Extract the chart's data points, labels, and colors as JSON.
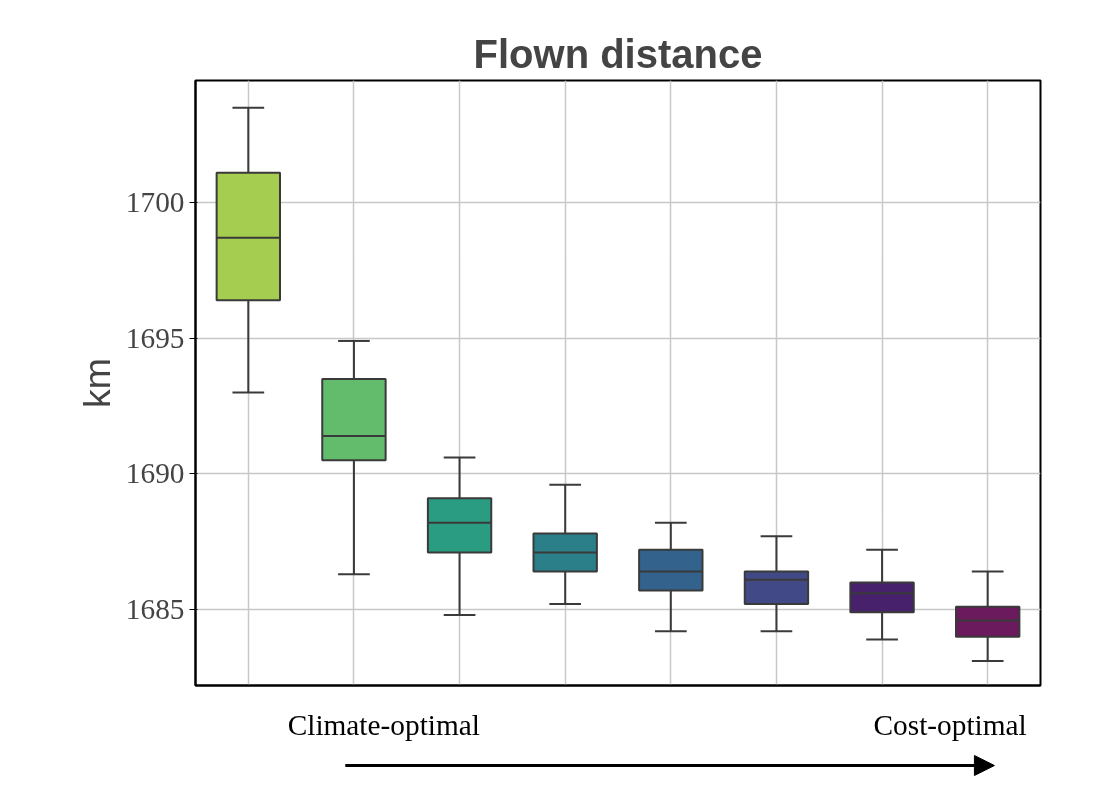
{
  "chart_data": {
    "type": "box",
    "title": "Flown distance",
    "ylabel": "km",
    "categories": [
      null,
      null,
      null,
      null,
      null,
      null,
      null,
      null
    ],
    "boxes": [
      {
        "low": 1693.0,
        "q1": 1696.4,
        "median": 1698.7,
        "q3": 1701.1,
        "high": 1703.5
      },
      {
        "low": 1686.3,
        "q1": 1690.5,
        "median": 1691.4,
        "q3": 1693.5,
        "high": 1694.9
      },
      {
        "low": 1684.8,
        "q1": 1687.1,
        "median": 1688.2,
        "q3": 1689.1,
        "high": 1690.6
      },
      {
        "low": 1685.2,
        "q1": 1686.4,
        "median": 1687.1,
        "q3": 1687.8,
        "high": 1689.6
      },
      {
        "low": 1684.2,
        "q1": 1685.7,
        "median": 1686.4,
        "q3": 1687.2,
        "high": 1688.2
      },
      {
        "low": 1684.2,
        "q1": 1685.2,
        "median": 1686.1,
        "q3": 1686.4,
        "high": 1687.7
      },
      {
        "low": 1683.9,
        "q1": 1684.9,
        "median": 1685.6,
        "q3": 1686.0,
        "high": 1687.2
      },
      {
        "low": 1683.1,
        "q1": 1684.0,
        "median": 1684.6,
        "q3": 1685.1,
        "high": 1686.4
      }
    ],
    "colors": [
      "#a5cd50",
      "#63bc6c",
      "#2a9c82",
      "#2a7f88",
      "#33638d",
      "#414a86",
      "#47216b",
      "#6b1a5e"
    ],
    "ylim": [
      1682.2,
      1704.5
    ],
    "yticks": [
      1685,
      1690,
      1695,
      1700
    ],
    "grid": true,
    "tick_labels": "y",
    "annotations": [
      "Climate-optimal",
      "Cost-optimal"
    ]
  }
}
